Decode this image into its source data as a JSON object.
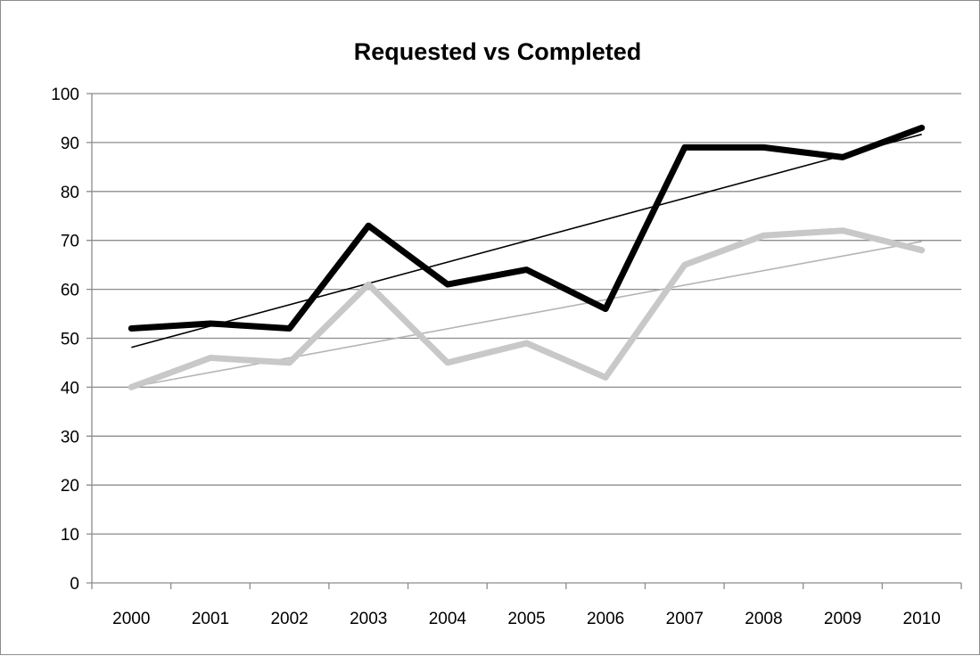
{
  "chart_data": {
    "type": "line",
    "title": "Requested vs Completed",
    "xlabel": "",
    "ylabel": "",
    "categories": [
      "2000",
      "2001",
      "2002",
      "2003",
      "2004",
      "2005",
      "2006",
      "2007",
      "2008",
      "2009",
      "2010"
    ],
    "ylim": [
      0,
      100
    ],
    "ytick_step": 10,
    "y_ticks": [
      "0",
      "10",
      "20",
      "30",
      "40",
      "50",
      "60",
      "70",
      "80",
      "90",
      "100"
    ],
    "grid": true,
    "legend": "none",
    "series": [
      {
        "values": [
          52,
          53,
          52,
          73,
          61,
          64,
          56,
          89,
          89,
          87,
          93
        ],
        "color": "#000000",
        "trendline": true,
        "trend_color": "#000000"
      },
      {
        "values": [
          40,
          46,
          45,
          61,
          45,
          49,
          42,
          65,
          71,
          72,
          68
        ],
        "color": "#c8c8c8",
        "trendline": true,
        "trend_color": "#b4b4b4"
      }
    ]
  }
}
